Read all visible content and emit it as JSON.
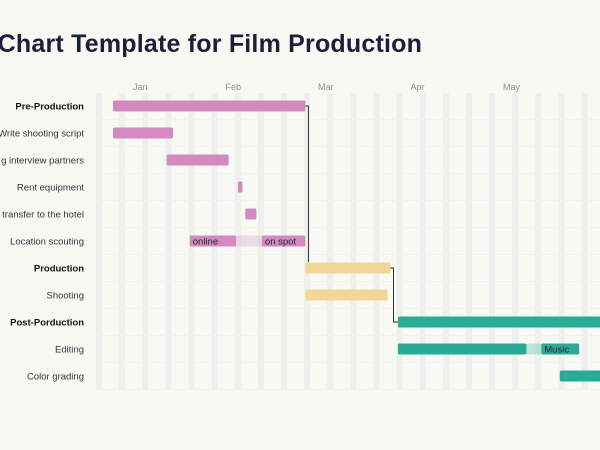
{
  "title": "t Chart Template for Film Production",
  "chart_data": {
    "type": "gantt",
    "title": "t Chart Template for Film Production",
    "months": [
      "Jan",
      "Feb",
      "Mar",
      "Apr",
      "May"
    ],
    "rows": [
      {
        "label": "Pre-Production",
        "phase": true,
        "color": "#d38bbf",
        "bars": [
          {
            "start": 0.0,
            "end": 2.08
          }
        ]
      },
      {
        "label": "Write shooting script",
        "phase": false,
        "color": "#d38bbf",
        "bars": [
          {
            "start": 0.0,
            "end": 0.65
          }
        ]
      },
      {
        "label": "g interview partners",
        "phase": false,
        "color": "#d38bbf",
        "bars": [
          {
            "start": 0.58,
            "end": 1.25
          }
        ]
      },
      {
        "label": "Rent equipment",
        "phase": false,
        "color": "#d38bbf",
        "bars": [
          {
            "start": 1.35,
            "end": 1.4
          }
        ]
      },
      {
        "label": "transfer to the hotel",
        "phase": false,
        "color": "#d38bbf",
        "bars": [
          {
            "start": 1.43,
            "end": 1.55
          }
        ]
      },
      {
        "label": "Location scouting",
        "phase": false,
        "color": "#d38bbf",
        "bars": [
          {
            "start": 0.83,
            "end": 1.33,
            "text": "online"
          },
          {
            "start": 1.33,
            "end": 1.61,
            "light": true
          },
          {
            "start": 1.61,
            "end": 2.08,
            "text": "on spot"
          }
        ]
      },
      {
        "label": "Production",
        "phase": true,
        "color": "#f1d795",
        "bars": [
          {
            "start": 2.08,
            "end": 3.0
          }
        ]
      },
      {
        "label": "Shooting",
        "phase": false,
        "color": "#f1d795",
        "bars": [
          {
            "start": 2.08,
            "end": 2.97
          }
        ]
      },
      {
        "label": "Post-Porduction",
        "phase": true,
        "color": "#2aab98",
        "bars": [
          {
            "start": 3.08,
            "end": 5.6
          }
        ]
      },
      {
        "label": "Editing",
        "phase": false,
        "color": "#2aab98",
        "bars": [
          {
            "start": 3.08,
            "end": 4.47
          },
          {
            "start": 4.47,
            "end": 4.63,
            "light": true
          },
          {
            "start": 4.63,
            "end": 5.04,
            "text": "Music"
          }
        ]
      },
      {
        "label": "Color grading",
        "phase": false,
        "color": "#2aab98",
        "bars": [
          {
            "start": 4.83,
            "end": 5.6
          }
        ]
      }
    ],
    "dependencies": [
      {
        "from": 0,
        "to": 6
      },
      {
        "from": 6,
        "to": 8
      }
    ]
  }
}
